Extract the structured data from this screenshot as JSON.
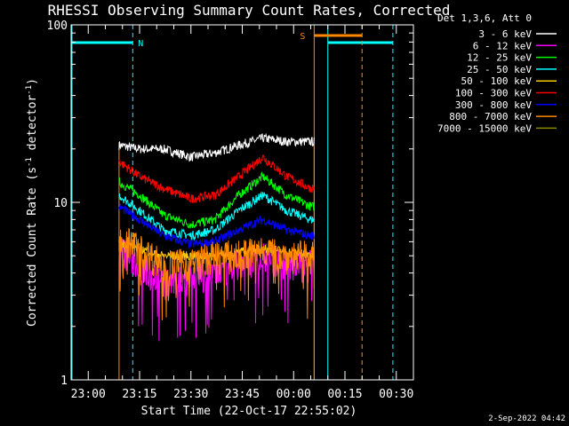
{
  "title": "RHESSI Observing Summary Count Rates, Corrected",
  "xlabel": "Start Time (22-Oct-17 22:55:02)",
  "ylabel_main": "Corrected Count Rate (s",
  "ylabel_sup1": "-1",
  "ylabel_mid": " detector",
  "ylabel_sup2": "-1",
  "ylabel_end": ")",
  "timestamp": "2-Sep-2022 04:42",
  "legend": {
    "header": "Det 1,3,6, Att 0",
    "position": "right, outside plot",
    "items": [
      {
        "label": "3 - 6 keV",
        "color": "#ffffff"
      },
      {
        "label": "6 - 12 keV",
        "color": "#ff00ff"
      },
      {
        "label": "12 - 25 keV",
        "color": "#00ff00"
      },
      {
        "label": "25 - 50 keV",
        "color": "#00ffff"
      },
      {
        "label": "50 - 100 keV",
        "color": "#ffcc00"
      },
      {
        "label": "100 - 300 keV",
        "color": "#ff0000"
      },
      {
        "label": "300 - 800 keV",
        "color": "#0000ff"
      },
      {
        "label": "800 - 7000 keV",
        "color": "#ff8800"
      },
      {
        "label": "7000 - 15000 keV",
        "color": "#888800"
      }
    ]
  },
  "markers": {
    "night_label": "N",
    "saa_label": "S"
  },
  "chart_data": {
    "type": "line",
    "title": "RHESSI Observing Summary Count Rates, Corrected",
    "xlabel": "Start Time (22-Oct-17 22:55:02)",
    "ylabel": "Corrected Count Rate (s-1 detector-1)",
    "y_scale": "log",
    "ylim": [
      1,
      100
    ],
    "xlim": [
      "22:55",
      "00:35"
    ],
    "x_ticks": [
      "23:00",
      "23:15",
      "23:30",
      "23:45",
      "00:00",
      "00:15",
      "00:30"
    ],
    "y_ticks": [
      "1",
      "10",
      "100"
    ],
    "grid": false,
    "series": [
      {
        "name": "3 - 6 keV",
        "color": "#ffffff",
        "points": [
          [
            "23:09",
            21
          ],
          [
            "23:15",
            20
          ],
          [
            "23:22",
            20
          ],
          [
            "23:30",
            18
          ],
          [
            "23:37",
            19
          ],
          [
            "23:44",
            21
          ],
          [
            "23:51",
            23
          ],
          [
            "23:58",
            22
          ],
          [
            "00:05",
            22
          ]
        ]
      },
      {
        "name": "12 - 25 keV",
        "color": "#00ff00",
        "points": [
          [
            "23:09",
            13
          ],
          [
            "23:15",
            11
          ],
          [
            "23:22",
            8.5
          ],
          [
            "23:30",
            7.5
          ],
          [
            "23:37",
            8
          ],
          [
            "23:44",
            11
          ],
          [
            "23:51",
            14
          ],
          [
            "23:58",
            11
          ],
          [
            "00:05",
            9.5
          ]
        ]
      },
      {
        "name": "25 - 50 keV",
        "color": "#00ffff",
        "points": [
          [
            "23:09",
            11
          ],
          [
            "23:15",
            9
          ],
          [
            "23:22",
            7
          ],
          [
            "23:30",
            6.5
          ],
          [
            "23:37",
            7
          ],
          [
            "23:44",
            9
          ],
          [
            "23:51",
            11
          ],
          [
            "23:58",
            9
          ],
          [
            "00:05",
            8
          ]
        ]
      },
      {
        "name": "100 - 300 keV",
        "color": "#ff0000",
        "points": [
          [
            "23:09",
            17
          ],
          [
            "23:15",
            14
          ],
          [
            "23:22",
            12
          ],
          [
            "23:30",
            10.5
          ],
          [
            "23:37",
            11
          ],
          [
            "23:44",
            14
          ],
          [
            "23:51",
            18
          ],
          [
            "23:58",
            14
          ],
          [
            "00:05",
            12
          ]
        ]
      },
      {
        "name": "300 - 800 keV",
        "color": "#0000ff",
        "points": [
          [
            "23:09",
            9.5
          ],
          [
            "23:15",
            8
          ],
          [
            "23:22",
            6.5
          ],
          [
            "23:30",
            5.8
          ],
          [
            "23:37",
            6
          ],
          [
            "23:44",
            7
          ],
          [
            "23:51",
            8
          ],
          [
            "23:58",
            7
          ],
          [
            "00:05",
            6.5
          ]
        ]
      },
      {
        "name": "6 - 12 keV",
        "color": "#ff00ff",
        "points": [
          [
            "23:09",
            5.5
          ],
          [
            "23:15",
            4.5
          ],
          [
            "23:22",
            3.5
          ],
          [
            "23:30",
            3.8
          ],
          [
            "23:37",
            4
          ],
          [
            "23:44",
            4.5
          ],
          [
            "23:51",
            5
          ],
          [
            "23:58",
            4.5
          ],
          [
            "00:05",
            4.5
          ]
        ]
      },
      {
        "name": "50 - 100 keV",
        "color": "#ffcc00",
        "points": [
          [
            "23:09",
            6
          ],
          [
            "23:15",
            5.5
          ],
          [
            "23:22",
            5
          ],
          [
            "23:30",
            5
          ],
          [
            "23:37",
            5
          ],
          [
            "23:44",
            5.2
          ],
          [
            "23:51",
            5.5
          ],
          [
            "23:58",
            5.3
          ],
          [
            "00:05",
            5
          ]
        ]
      },
      {
        "name": "800 - 7000 keV",
        "color": "#ff8800",
        "points": [
          [
            "23:09",
            6.5
          ],
          [
            "23:15",
            5.5
          ],
          [
            "23:22",
            4.5
          ],
          [
            "23:30",
            4.5
          ],
          [
            "23:37",
            5
          ],
          [
            "23:44",
            5
          ],
          [
            "23:51",
            5.5
          ],
          [
            "23:58",
            5
          ],
          [
            "00:05",
            5
          ]
        ]
      }
    ],
    "noise_level": 0.05,
    "data_start": "23:09",
    "data_end": "00:06",
    "events": {
      "night": {
        "start": "22:55",
        "end": "23:13",
        "color": "#00ffff"
      },
      "night2": {
        "start": "00:10",
        "end": "00:29",
        "color": "#00ffff"
      },
      "saa": {
        "start": "00:06",
        "end": "00:20",
        "color": "#ff8800"
      },
      "orange_edges": [
        "23:09",
        "00:06"
      ]
    }
  }
}
